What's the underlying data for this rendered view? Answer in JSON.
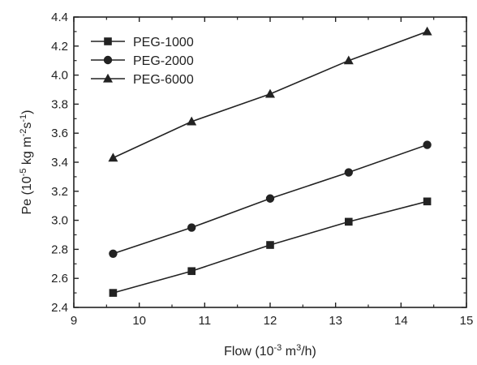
{
  "chart_data": {
    "type": "line",
    "xlabel": {
      "base": "Flow (10",
      "sup1": "-3",
      "mid": " m",
      "sup2": "3",
      "tail": "/h)"
    },
    "ylabel": {
      "base": "Pe (10",
      "sup1": "-5",
      "mid": " kg m",
      "sup2": "-2",
      "mid2": "s",
      "sup3": "-1",
      "tail": ")"
    },
    "xlim": [
      9,
      15
    ],
    "ylim": [
      2.4,
      4.4
    ],
    "xticks": [
      "9",
      "10",
      "11",
      "12",
      "13",
      "14",
      "15"
    ],
    "yticks": [
      "2.4",
      "2.6",
      "2.8",
      "3.0",
      "3.2",
      "3.4",
      "3.6",
      "3.8",
      "4.0",
      "4.2",
      "4.4"
    ],
    "x": [
      9.6,
      10.8,
      12.0,
      13.2,
      14.4
    ],
    "series": [
      {
        "name": "PEG-1000",
        "marker": "square",
        "values": [
          2.5,
          2.65,
          2.83,
          2.99,
          3.13
        ]
      },
      {
        "name": "PEG-2000",
        "marker": "circle",
        "values": [
          2.77,
          2.95,
          3.15,
          3.33,
          3.52
        ]
      },
      {
        "name": "PEG-6000",
        "marker": "triangle",
        "values": [
          3.43,
          3.68,
          3.87,
          4.1,
          4.3
        ]
      }
    ],
    "legend_position": "top-left",
    "grid": false,
    "colors": {
      "line": "#222222",
      "marker": "#222222"
    }
  }
}
